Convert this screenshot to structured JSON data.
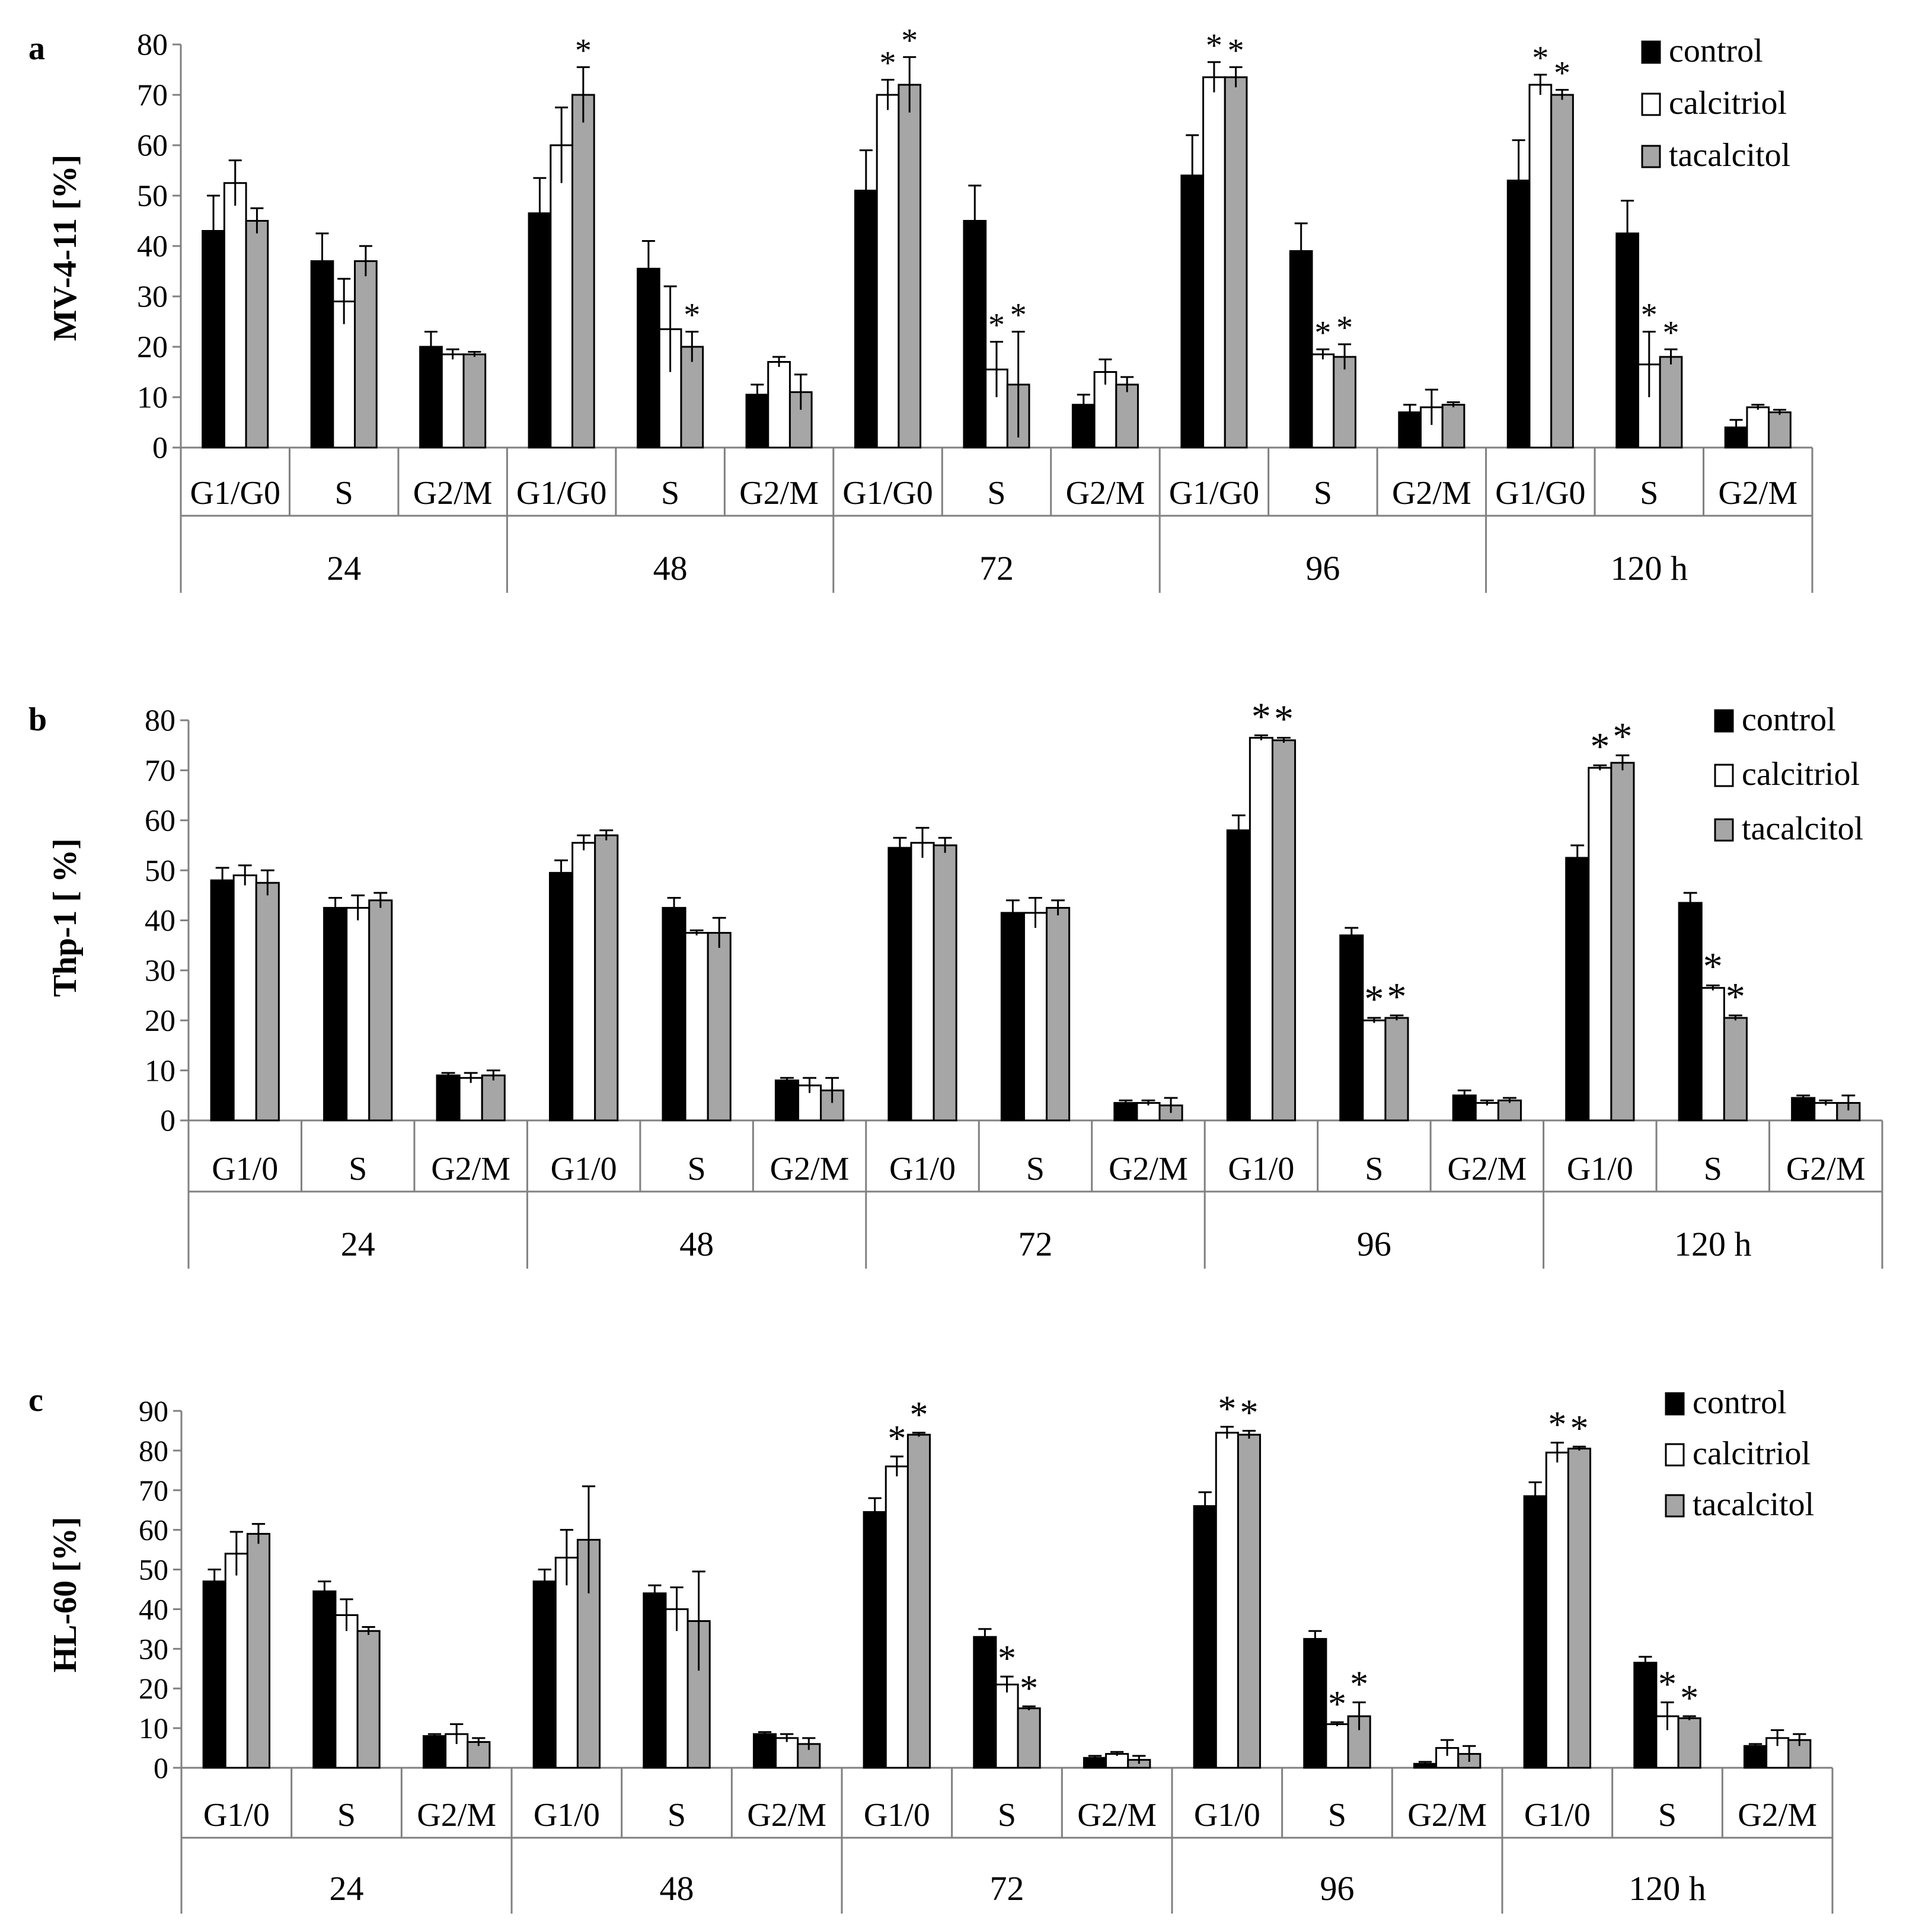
{
  "colors": {
    "control": "#000000",
    "calcitriol": "#ffffff",
    "tacalcitol": "#a6a6a6",
    "axis": "#808080",
    "outline": "#000000"
  },
  "chart_data": [
    {
      "type": "bar",
      "panel_letter": "a",
      "ylabel": "MV-4-11 [%]",
      "ylim": [
        0,
        80
      ],
      "yticks": [
        "0",
        "10",
        "20",
        "30",
        "40",
        "50",
        "60",
        "70",
        "80"
      ],
      "phases": [
        "G1/G0",
        "S",
        "G2/M"
      ],
      "groups": [
        "24",
        "48",
        "72",
        "96",
        "120 h"
      ],
      "legend": [
        "control",
        "calcitriol",
        "tacalcitol"
      ],
      "legend_position": "top-right",
      "series": [
        {
          "name": "control",
          "values": [
            43,
            37,
            20,
            46.5,
            35.5,
            10.5,
            51,
            45,
            8.5,
            54,
            39,
            7,
            53,
            42.5,
            4
          ],
          "errors": [
            7,
            5.5,
            3,
            7,
            5.5,
            2,
            8,
            7,
            2,
            8,
            5.5,
            1.5,
            8,
            6.5,
            1.5
          ],
          "stars": [
            "",
            "",
            "",
            "",
            "",
            "",
            "",
            "",
            "",
            "",
            "",
            "",
            "",
            "",
            ""
          ]
        },
        {
          "name": "calcitriol",
          "values": [
            52.5,
            29,
            18.5,
            60,
            23.5,
            17,
            70,
            15.5,
            15,
            73.5,
            18.5,
            8,
            72,
            16.5,
            8
          ],
          "errors": [
            4.5,
            4.5,
            1,
            7.5,
            8.5,
            1,
            3,
            5.5,
            2.5,
            3,
            1,
            3.5,
            2,
            6.5,
            0.5
          ],
          "stars": [
            "",
            "",
            "",
            "",
            "",
            "",
            "*",
            "*",
            "",
            "*",
            "*",
            "",
            "*",
            "*",
            ""
          ]
        },
        {
          "name": "tacalcitol",
          "values": [
            45,
            37,
            18.5,
            70,
            20,
            11,
            72,
            12.5,
            12.5,
            73.5,
            18,
            8.5,
            70,
            18,
            7
          ],
          "errors": [
            2.5,
            3,
            0.5,
            5.5,
            3,
            3.5,
            5.5,
            10.5,
            1.5,
            2,
            2.5,
            0.5,
            1,
            1.5,
            0.5
          ],
          "stars": [
            "",
            "",
            "",
            "*",
            "*",
            "",
            "*",
            "*",
            "",
            "*",
            "*",
            "",
            "*",
            "*",
            ""
          ]
        }
      ]
    },
    {
      "type": "bar",
      "panel_letter": "b",
      "ylabel": "Thp-1  [ %]",
      "ylim": [
        0,
        80
      ],
      "yticks": [
        "0",
        "10",
        "20",
        "30",
        "40",
        "50",
        "60",
        "70",
        "80"
      ],
      "phases": [
        "G1/0",
        "S",
        "G2/M"
      ],
      "groups": [
        "24",
        "48",
        "72",
        "96",
        "120 h"
      ],
      "legend": [
        "control",
        "calcitriol",
        "tacalcitol"
      ],
      "legend_position": "top-right",
      "series": [
        {
          "name": "control",
          "values": [
            48,
            42.5,
            9,
            49.5,
            42.5,
            8,
            54.5,
            41.5,
            3.5,
            58,
            37,
            5,
            52.5,
            43.5,
            4.5
          ],
          "errors": [
            2.5,
            2,
            0.5,
            2.5,
            2,
            0.5,
            2,
            2.5,
            0.5,
            3,
            1.5,
            1,
            2.5,
            2,
            0.5
          ],
          "stars": [
            "",
            "",
            "",
            "",
            "",
            "",
            "",
            "",
            "",
            "",
            "",
            "",
            "",
            "",
            ""
          ]
        },
        {
          "name": "calcitriol",
          "values": [
            49,
            42.5,
            8.5,
            55.5,
            37.5,
            7,
            55.5,
            41.5,
            3.5,
            76.5,
            20,
            3.5,
            70.5,
            26.5,
            3.5
          ],
          "errors": [
            2,
            2.5,
            1,
            1.5,
            0.5,
            1.5,
            3,
            3,
            0.5,
            0.5,
            0.5,
            0.5,
            0.5,
            0.5,
            0.5
          ],
          "stars": [
            "",
            "",
            "",
            "",
            "",
            "",
            "",
            "",
            "",
            "*",
            "*",
            "",
            "*",
            "*",
            ""
          ]
        },
        {
          "name": "tacalcitol",
          "values": [
            47.5,
            44,
            9,
            57,
            37.5,
            6,
            55,
            42.5,
            3,
            76,
            20.5,
            4,
            71.5,
            20.5,
            3.5
          ],
          "errors": [
            2.5,
            1.5,
            1,
            1,
            3,
            2.5,
            1.5,
            1.5,
            1.5,
            0.5,
            0.5,
            0.5,
            1.5,
            0.5,
            1.5
          ],
          "stars": [
            "",
            "",
            "",
            "",
            "",
            "",
            "",
            "",
            "",
            "*",
            "*",
            "",
            "*",
            "*",
            ""
          ]
        }
      ]
    },
    {
      "type": "bar",
      "panel_letter": "c",
      "ylabel": "HL-60 [%]",
      "ylim": [
        0,
        90
      ],
      "yticks": [
        "0",
        "10",
        "20",
        "30",
        "40",
        "50",
        "60",
        "70",
        "80",
        "90"
      ],
      "phases": [
        "G1/0",
        "S",
        "G2/M"
      ],
      "groups": [
        "24",
        "48",
        "72",
        "96",
        "120 h"
      ],
      "legend": [
        "control",
        "calcitriol",
        "tacalcitol"
      ],
      "legend_position": "top-right",
      "series": [
        {
          "name": "control",
          "values": [
            47,
            44.5,
            8,
            47,
            44,
            8.5,
            64.5,
            33,
            2.5,
            66,
            32.5,
            1,
            68.5,
            26.5,
            5.5
          ],
          "errors": [
            3,
            2.5,
            0.5,
            3,
            2,
            0.5,
            3.5,
            2,
            0.5,
            3.5,
            2,
            0.5,
            3.5,
            1.5,
            0.5
          ],
          "stars": [
            "",
            "",
            "",
            "",
            "",
            "",
            "",
            "",
            "",
            "",
            "",
            "",
            "",
            "",
            ""
          ]
        },
        {
          "name": "calcitriol",
          "values": [
            54,
            38.5,
            8.5,
            53,
            40,
            7.5,
            76,
            21,
            3.5,
            84.5,
            11,
            5,
            79.5,
            13,
            7.5
          ],
          "errors": [
            5.5,
            4,
            2.5,
            7,
            5.5,
            1,
            2.5,
            2,
            0.5,
            1.5,
            0.5,
            2,
            2.5,
            3.5,
            2
          ],
          "stars": [
            "",
            "",
            "",
            "",
            "",
            "",
            "*",
            "*",
            "",
            "*",
            "*",
            "",
            "*",
            "*",
            ""
          ]
        },
        {
          "name": "tacalcitol",
          "values": [
            59,
            34.5,
            6.5,
            57.5,
            37,
            6,
            84,
            15,
            2,
            84,
            13,
            3.5,
            80.5,
            12.5,
            7
          ],
          "errors": [
            2.5,
            1,
            1,
            13.5,
            12.5,
            1.5,
            0.5,
            0.5,
            1,
            1,
            3.5,
            2,
            0.5,
            0.5,
            1.5
          ],
          "stars": [
            "",
            "",
            "",
            "",
            "",
            "",
            "*",
            "*",
            "",
            "*",
            "*",
            "",
            "*",
            "*",
            ""
          ]
        }
      ]
    }
  ]
}
